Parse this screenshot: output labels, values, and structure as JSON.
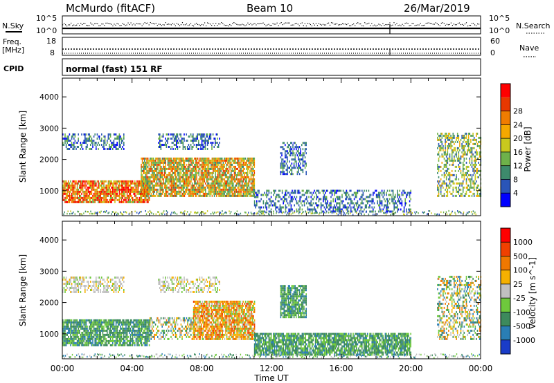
{
  "header": {
    "station": "McMurdo (fitACF)",
    "beam": "Beam 10",
    "date": "26/Mar/2019"
  },
  "sky_panel": {
    "left_label": "N.Sky",
    "left_top": "10^5",
    "left_bottom": "10^0",
    "right_top": "10^5",
    "right_bottom": "10^0",
    "right_label": "N.Search"
  },
  "freq_panel": {
    "left_label_1": "Freq.",
    "left_label_2": "[MHz]",
    "left_top": "18",
    "left_bottom": "8",
    "right_top": "60",
    "right_bottom": "0",
    "right_label": "Nave"
  },
  "cpid": {
    "label": "CPID",
    "value": "normal (fast) 151 RF"
  },
  "chart_data": [
    {
      "type": "heatmap",
      "parameter": "Power",
      "ylabel": "Slant Range [km]",
      "xlabel": "Time UT",
      "x_ticks": [
        "00:00",
        "04:00",
        "08:00",
        "12:00",
        "16:00",
        "20:00",
        "00:00"
      ],
      "x_range_hours": [
        0,
        24
      ],
      "y_ticks": [
        1000,
        2000,
        3000,
        4000
      ],
      "ylim": [
        200,
        4600
      ],
      "colorbar": {
        "label": "Power [dB]",
        "ticks": [
          "4",
          "8",
          "12",
          "16",
          "20",
          "24",
          "28"
        ],
        "colors": [
          "#0000ff",
          "#2a55b8",
          "#3d8a6c",
          "#6eb14a",
          "#c8c81e",
          "#f5a800",
          "#f07c00",
          "#e83800",
          "#ff0000"
        ]
      },
      "echo_regions": [
        {
          "t_start": 0.0,
          "t_end": 5.0,
          "r_min": 600,
          "r_max": 1300,
          "level": "high"
        },
        {
          "t_start": 4.5,
          "t_end": 11.0,
          "r_min": 800,
          "r_max": 2000,
          "level": "mid-high"
        },
        {
          "t_start": 0.0,
          "t_end": 3.5,
          "r_min": 2300,
          "r_max": 2800,
          "level": "low"
        },
        {
          "t_start": 5.5,
          "t_end": 9.0,
          "r_min": 2300,
          "r_max": 2800,
          "level": "low"
        },
        {
          "t_start": 12.5,
          "t_end": 14.0,
          "r_min": 1500,
          "r_max": 2500,
          "level": "low"
        },
        {
          "t_start": 11.0,
          "t_end": 20.0,
          "r_min": 300,
          "r_max": 1000,
          "level": "low"
        },
        {
          "t_start": 21.5,
          "t_end": 24.0,
          "r_min": 800,
          "r_max": 2800,
          "level": "mid"
        }
      ]
    },
    {
      "type": "heatmap",
      "parameter": "Velocity",
      "ylabel": "Slant Range [km]",
      "xlabel": "Time UT",
      "x_ticks": [
        "00:00",
        "04:00",
        "08:00",
        "12:00",
        "16:00",
        "20:00",
        "00:00"
      ],
      "x_range_hours": [
        0,
        24
      ],
      "y_ticks": [
        1000,
        2000,
        3000,
        4000
      ],
      "ylim": [
        200,
        4600
      ],
      "colorbar": {
        "label": "Velocity [m s^-1]",
        "ticks": [
          "1000",
          "500",
          "100",
          "25",
          "-25",
          "-100",
          "-500",
          "-1000"
        ],
        "colors": [
          "#1a3cc8",
          "#2a7eb4",
          "#3d8a5c",
          "#6ec83c",
          "#c0c0c0",
          "#f5b000",
          "#f07800",
          "#f04000",
          "#ff0000"
        ]
      },
      "echo_regions": [
        {
          "t_start": 0.0,
          "t_end": 5.0,
          "r_min": 600,
          "r_max": 1400,
          "level": "green"
        },
        {
          "t_start": 5.0,
          "t_end": 7.5,
          "r_min": 800,
          "r_max": 1500,
          "level": "mixed"
        },
        {
          "t_start": 7.5,
          "t_end": 11.0,
          "r_min": 800,
          "r_max": 2000,
          "level": "orange"
        },
        {
          "t_start": 0.0,
          "t_end": 3.5,
          "r_min": 2300,
          "r_max": 2800,
          "level": "grey"
        },
        {
          "t_start": 5.5,
          "t_end": 9.0,
          "r_min": 2300,
          "r_max": 2800,
          "level": "grey"
        },
        {
          "t_start": 12.5,
          "t_end": 14.0,
          "r_min": 1500,
          "r_max": 2500,
          "level": "green"
        },
        {
          "t_start": 11.0,
          "t_end": 20.0,
          "r_min": 300,
          "r_max": 1000,
          "level": "green"
        },
        {
          "t_start": 21.5,
          "t_end": 24.0,
          "r_min": 800,
          "r_max": 2800,
          "level": "mixed"
        }
      ]
    }
  ]
}
